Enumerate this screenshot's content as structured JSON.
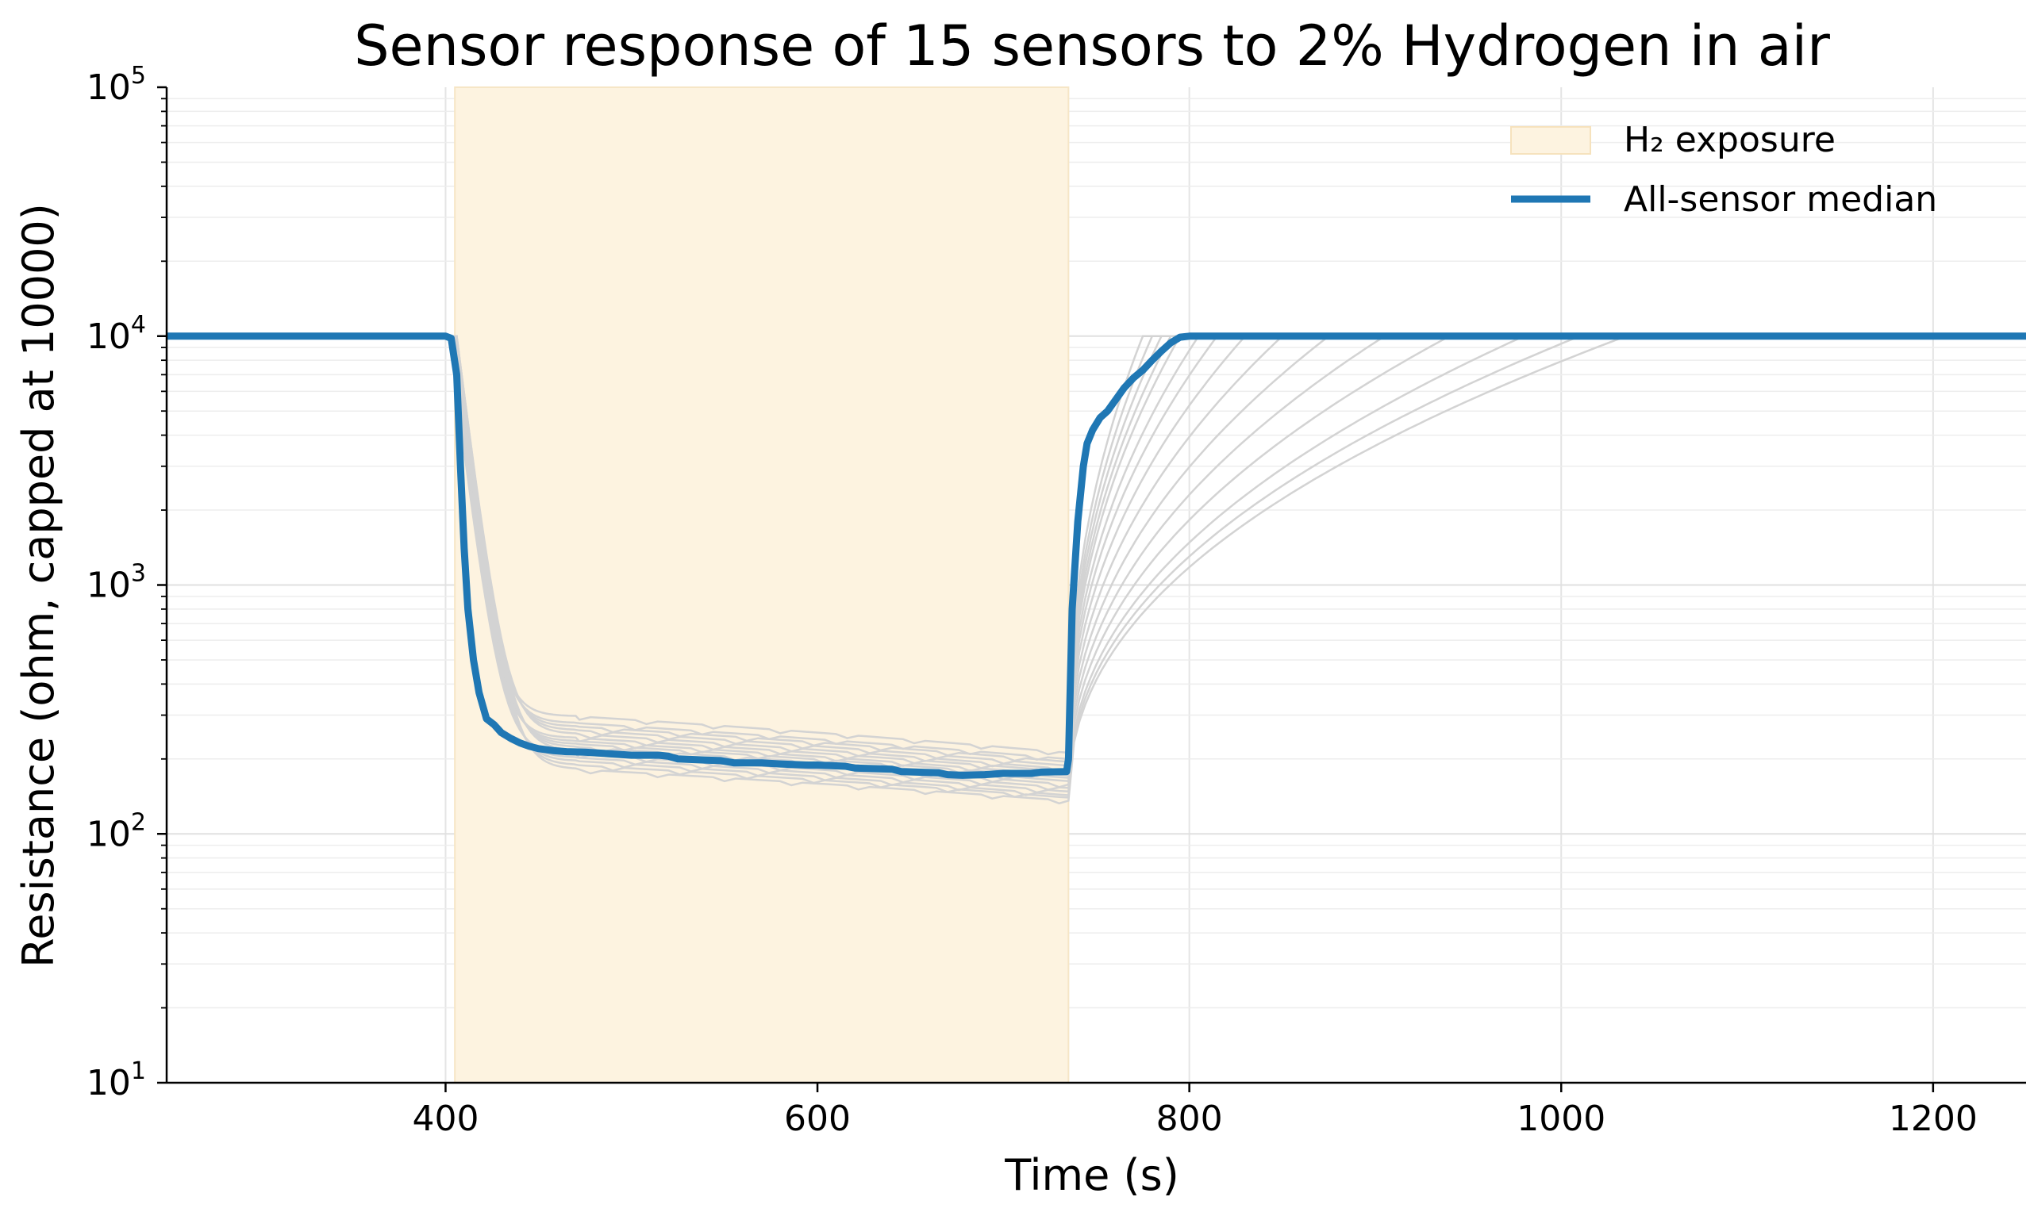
{
  "chart_data": {
    "type": "line",
    "title": "Sensor response of 15 sensors to 2% Hydrogen in air",
    "xlabel": "Time (s)",
    "ylabel": "Resistance (ohm, capped at 10000)",
    "xlim": [
      250,
      1250
    ],
    "ylim": [
      10,
      100000
    ],
    "yscale": "log",
    "x_ticks": [
      400,
      600,
      800,
      1000,
      1200
    ],
    "y_ticks": [
      {
        "value": 10,
        "base": "10",
        "exp": "1"
      },
      {
        "value": 100,
        "base": "10",
        "exp": "2"
      },
      {
        "value": 1000,
        "base": "10",
        "exp": "3"
      },
      {
        "value": 10000,
        "base": "10",
        "exp": "4"
      },
      {
        "value": 100000,
        "base": "10",
        "exp": "5"
      }
    ],
    "grid": true,
    "legend_position": "top-right",
    "legend": [
      {
        "label": "H₂ exposure",
        "kind": "patch",
        "color": "#fdf3e0"
      },
      {
        "label": "All-sensor median",
        "kind": "line",
        "color": "#1f77b4"
      }
    ],
    "exposure_span": {
      "x_start": 405,
      "x_end": 735,
      "color": "#fdf3e0"
    },
    "median": {
      "name": "All-sensor median",
      "color": "#1f77b4",
      "x": [
        250,
        400,
        403,
        406,
        408,
        410,
        412,
        415,
        418,
        422,
        426,
        430,
        435,
        440,
        445,
        450,
        458,
        465,
        475,
        488,
        500,
        515,
        520,
        525,
        540,
        548,
        555,
        570,
        580,
        595,
        600,
        615,
        620,
        640,
        645,
        665,
        670,
        678,
        690,
        700,
        715,
        720,
        734,
        735,
        737,
        740,
        743,
        745,
        748,
        752,
        756,
        760,
        765,
        770,
        775,
        780,
        785,
        790,
        795,
        800,
        1250
      ],
      "y": [
        10000,
        10000,
        9800,
        7000,
        3000,
        1400,
        800,
        500,
        370,
        290,
        275,
        255,
        242,
        232,
        225,
        220,
        216,
        214,
        213,
        210,
        207,
        207,
        205,
        200,
        198,
        197,
        193,
        193,
        191,
        189,
        189,
        187,
        184,
        182,
        178,
        176,
        173,
        172,
        173,
        175,
        175,
        177,
        178,
        200,
        800,
        1800,
        3000,
        3700,
        4200,
        4700,
        5000,
        5500,
        6200,
        6800,
        7300,
        8000,
        8700,
        9400,
        9900,
        10000,
        10000
      ]
    },
    "sensors": [
      {
        "color": "#d3d3d3",
        "recovery_end": 775,
        "y_start": 330,
        "y_end": 212,
        "d": 0
      },
      {
        "color": "#d3d3d3",
        "recovery_end": 780,
        "y_start": 310,
        "y_end": 200,
        "d": 1
      },
      {
        "color": "#d3d3d3",
        "recovery_end": 785,
        "y_start": 300,
        "y_end": 195,
        "d": 1
      },
      {
        "color": "#d3d3d3",
        "recovery_end": 790,
        "y_start": 290,
        "y_end": 188,
        "d": 0
      },
      {
        "color": "#d3d3d3",
        "recovery_end": 795,
        "y_start": 280,
        "y_end": 182,
        "d": 1
      },
      {
        "color": "#d3d3d3",
        "recovery_end": 805,
        "y_start": 270,
        "y_end": 178,
        "d": 0
      },
      {
        "color": "#d3d3d3",
        "recovery_end": 815,
        "y_start": 262,
        "y_end": 172,
        "d": 2
      },
      {
        "color": "#d3d3d3",
        "recovery_end": 830,
        "y_start": 255,
        "y_end": 168,
        "d": 0
      },
      {
        "color": "#d3d3d3",
        "recovery_end": 850,
        "y_start": 248,
        "y_end": 163,
        "d": 1
      },
      {
        "color": "#d3d3d3",
        "recovery_end": 875,
        "y_start": 240,
        "y_end": 158,
        "d": 2
      },
      {
        "color": "#d3d3d3",
        "recovery_end": 905,
        "y_start": 232,
        "y_end": 153,
        "d": 0
      },
      {
        "color": "#d3d3d3",
        "recovery_end": 940,
        "y_start": 225,
        "y_end": 148,
        "d": 1
      },
      {
        "color": "#d3d3d3",
        "recovery_end": 980,
        "y_start": 218,
        "y_end": 143,
        "d": 2
      },
      {
        "color": "#d3d3d3",
        "recovery_end": 1010,
        "y_start": 210,
        "y_end": 140,
        "d": 0
      },
      {
        "color": "#d3d3d3",
        "recovery_end": 1035,
        "y_start": 202,
        "y_end": 136,
        "d": 1
      }
    ]
  }
}
